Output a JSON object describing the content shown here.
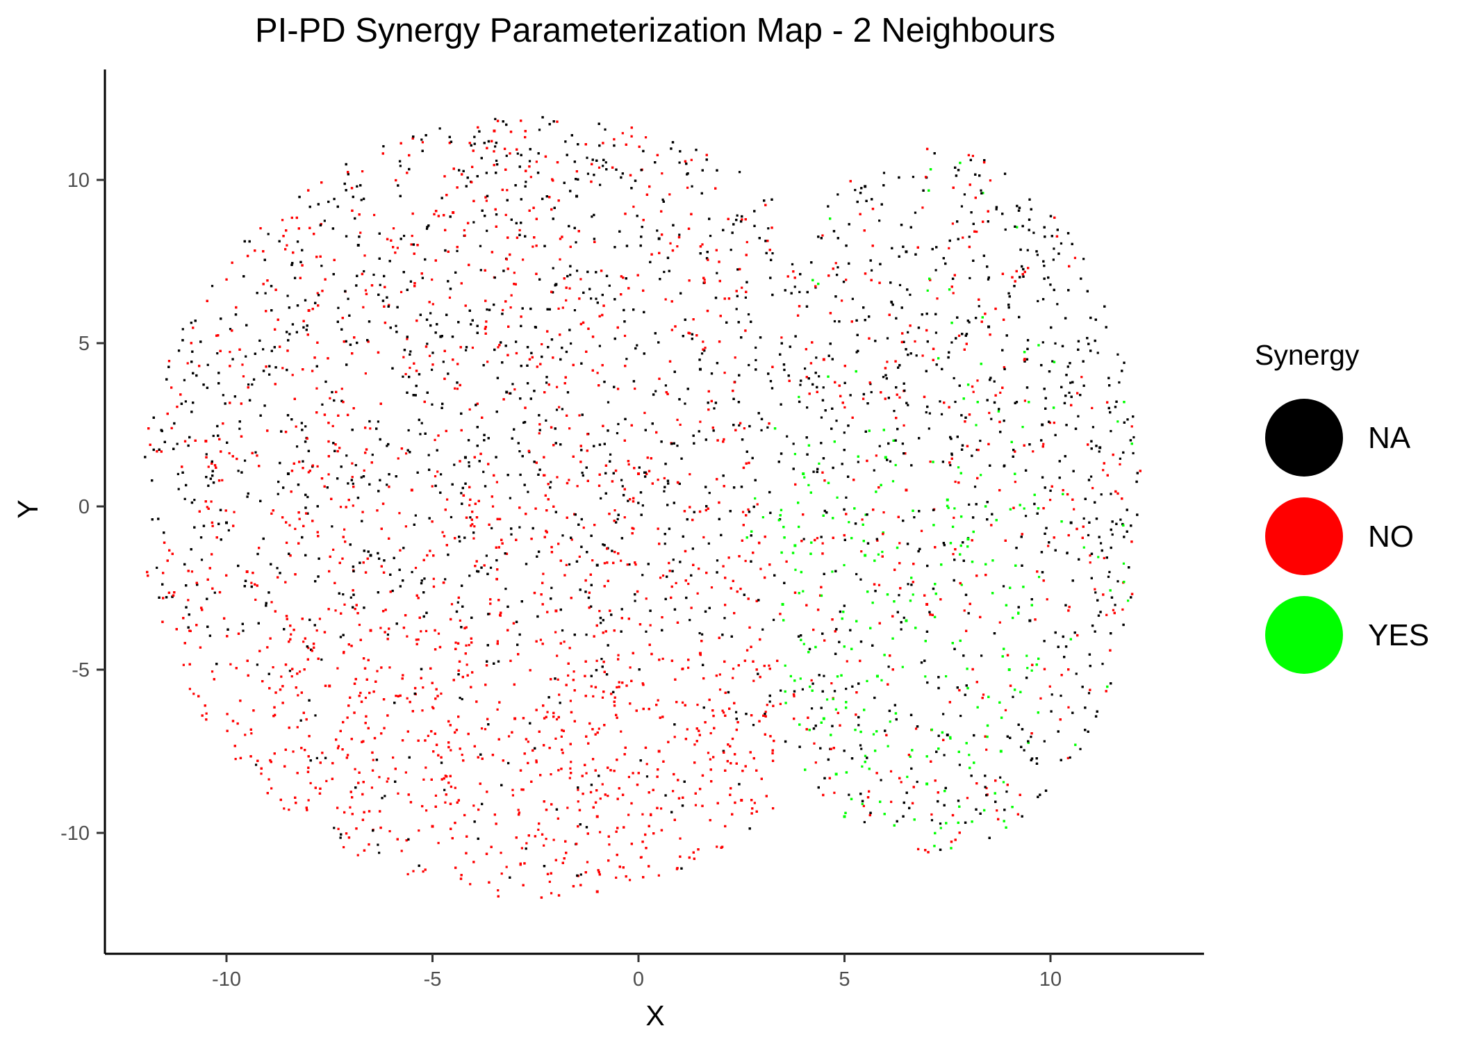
{
  "chart_data": {
    "type": "scatter",
    "title": "PI-PD Synergy Parameterization Map - 2 Neighbours",
    "xlabel": "X",
    "ylabel": "Y",
    "xlim": [
      -13,
      13.5
    ],
    "ylim": [
      -13.2,
      13.2
    ],
    "x_ticks": [
      -10,
      -5,
      0,
      5,
      10
    ],
    "y_ticks": [
      -10,
      -5,
      0,
      5,
      10
    ],
    "grid": false,
    "legend": {
      "title": "Synergy",
      "placement": "right",
      "entries": [
        {
          "label": "NA",
          "color": "#000000"
        },
        {
          "label": "NO",
          "color": "#ff0000"
        },
        {
          "label": "YES",
          "color": "#00ff00"
        }
      ]
    },
    "series": [
      {
        "name": "NA",
        "color": "#000000",
        "points": [
          [
            -3.2,
            3.5
          ],
          [
            -1.5,
            9.5
          ],
          [
            -4.8,
            5.2
          ],
          [
            -2.0,
            6.8
          ],
          [
            0.5,
            8.2
          ],
          [
            6.5,
            7.8
          ],
          [
            8.5,
            5.5
          ],
          [
            9.8,
            2.5
          ],
          [
            10.5,
            -0.5
          ],
          [
            9.5,
            -3.5
          ],
          [
            -8.5,
            1.0
          ],
          [
            -6.5,
            -1.5
          ],
          [
            -1.0,
            -1.8
          ],
          [
            -4.2,
            1.5
          ],
          [
            1.5,
            4.2
          ],
          [
            7.5,
            -7.0
          ],
          [
            11.2,
            1.8
          ],
          [
            5.5,
            9.8
          ],
          [
            -6.8,
            8.0
          ],
          [
            -10.0,
            -0.5
          ]
        ]
      },
      {
        "name": "NO",
        "color": "#ff0000",
        "points": [
          [
            -1.0,
            -9.5
          ],
          [
            -3.0,
            -6.5
          ],
          [
            0.5,
            -7.5
          ],
          [
            -7.5,
            -5.5
          ],
          [
            -9.5,
            -2.0
          ],
          [
            -5.5,
            0.5
          ],
          [
            -2.0,
            -3.2
          ],
          [
            -8.0,
            6.0
          ],
          [
            -4.5,
            9.0
          ],
          [
            1.5,
            -4.5
          ],
          [
            2.5,
            -9.0
          ],
          [
            -5.0,
            -9.8
          ],
          [
            -10.5,
            2.0
          ],
          [
            0.0,
            1.0
          ],
          [
            4.5,
            4.5
          ],
          [
            6.5,
            0.5
          ],
          [
            -1.0,
            -11.8
          ],
          [
            -3.5,
            11.5
          ],
          [
            7.0,
            -3.0
          ],
          [
            -6.5,
            -3.8
          ]
        ]
      },
      {
        "name": "YES",
        "color": "#00ff00",
        "points": [
          [
            5.5,
            -1.5
          ],
          [
            6.5,
            -3.5
          ],
          [
            4.5,
            -6.5
          ],
          [
            7.0,
            -8.5
          ],
          [
            5.0,
            -9.5
          ],
          [
            8.0,
            -1.0
          ],
          [
            4.0,
            1.0
          ],
          [
            6.0,
            1.5
          ],
          [
            9.0,
            -5.0
          ],
          [
            3.5,
            -3.0
          ],
          [
            5.8,
            -5.2
          ],
          [
            7.5,
            0.2
          ],
          [
            4.8,
            -8.2
          ],
          [
            8.8,
            -7.5
          ],
          [
            3.8,
            -1.2
          ]
        ]
      }
    ]
  }
}
